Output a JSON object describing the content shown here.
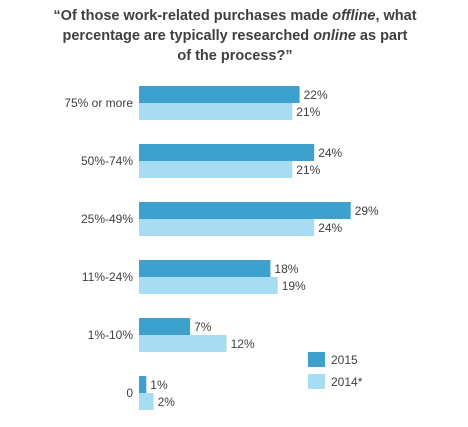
{
  "title": {
    "line1_a": "“Of those work-related purchases made ",
    "line1_em": "offline",
    "line1_b": ", what",
    "line2_a": "percentage are typically researched ",
    "line2_em": "online",
    "line2_b": " as part",
    "line3": "of the process?”"
  },
  "chart_data": {
    "type": "bar",
    "orientation": "horizontal",
    "categories": [
      "75% or more",
      "50%-74%",
      "25%-49%",
      "11%-24%",
      "1%-10%",
      "0"
    ],
    "series": [
      {
        "name": "2015",
        "values": [
          22,
          24,
          29,
          18,
          7,
          1
        ],
        "labels": [
          "22%",
          "24%",
          "29%",
          "18%",
          "7%",
          "1%"
        ],
        "color": "#3da0cd"
      },
      {
        "name": "2014*",
        "values": [
          21,
          21,
          24,
          19,
          12,
          2
        ],
        "labels": [
          "21%",
          "21%",
          "24%",
          "19%",
          "12%",
          "2%"
        ],
        "color": "#a8dcf3"
      }
    ],
    "xlim": [
      0,
      30
    ],
    "grid": false,
    "legend": "bottom-right"
  }
}
